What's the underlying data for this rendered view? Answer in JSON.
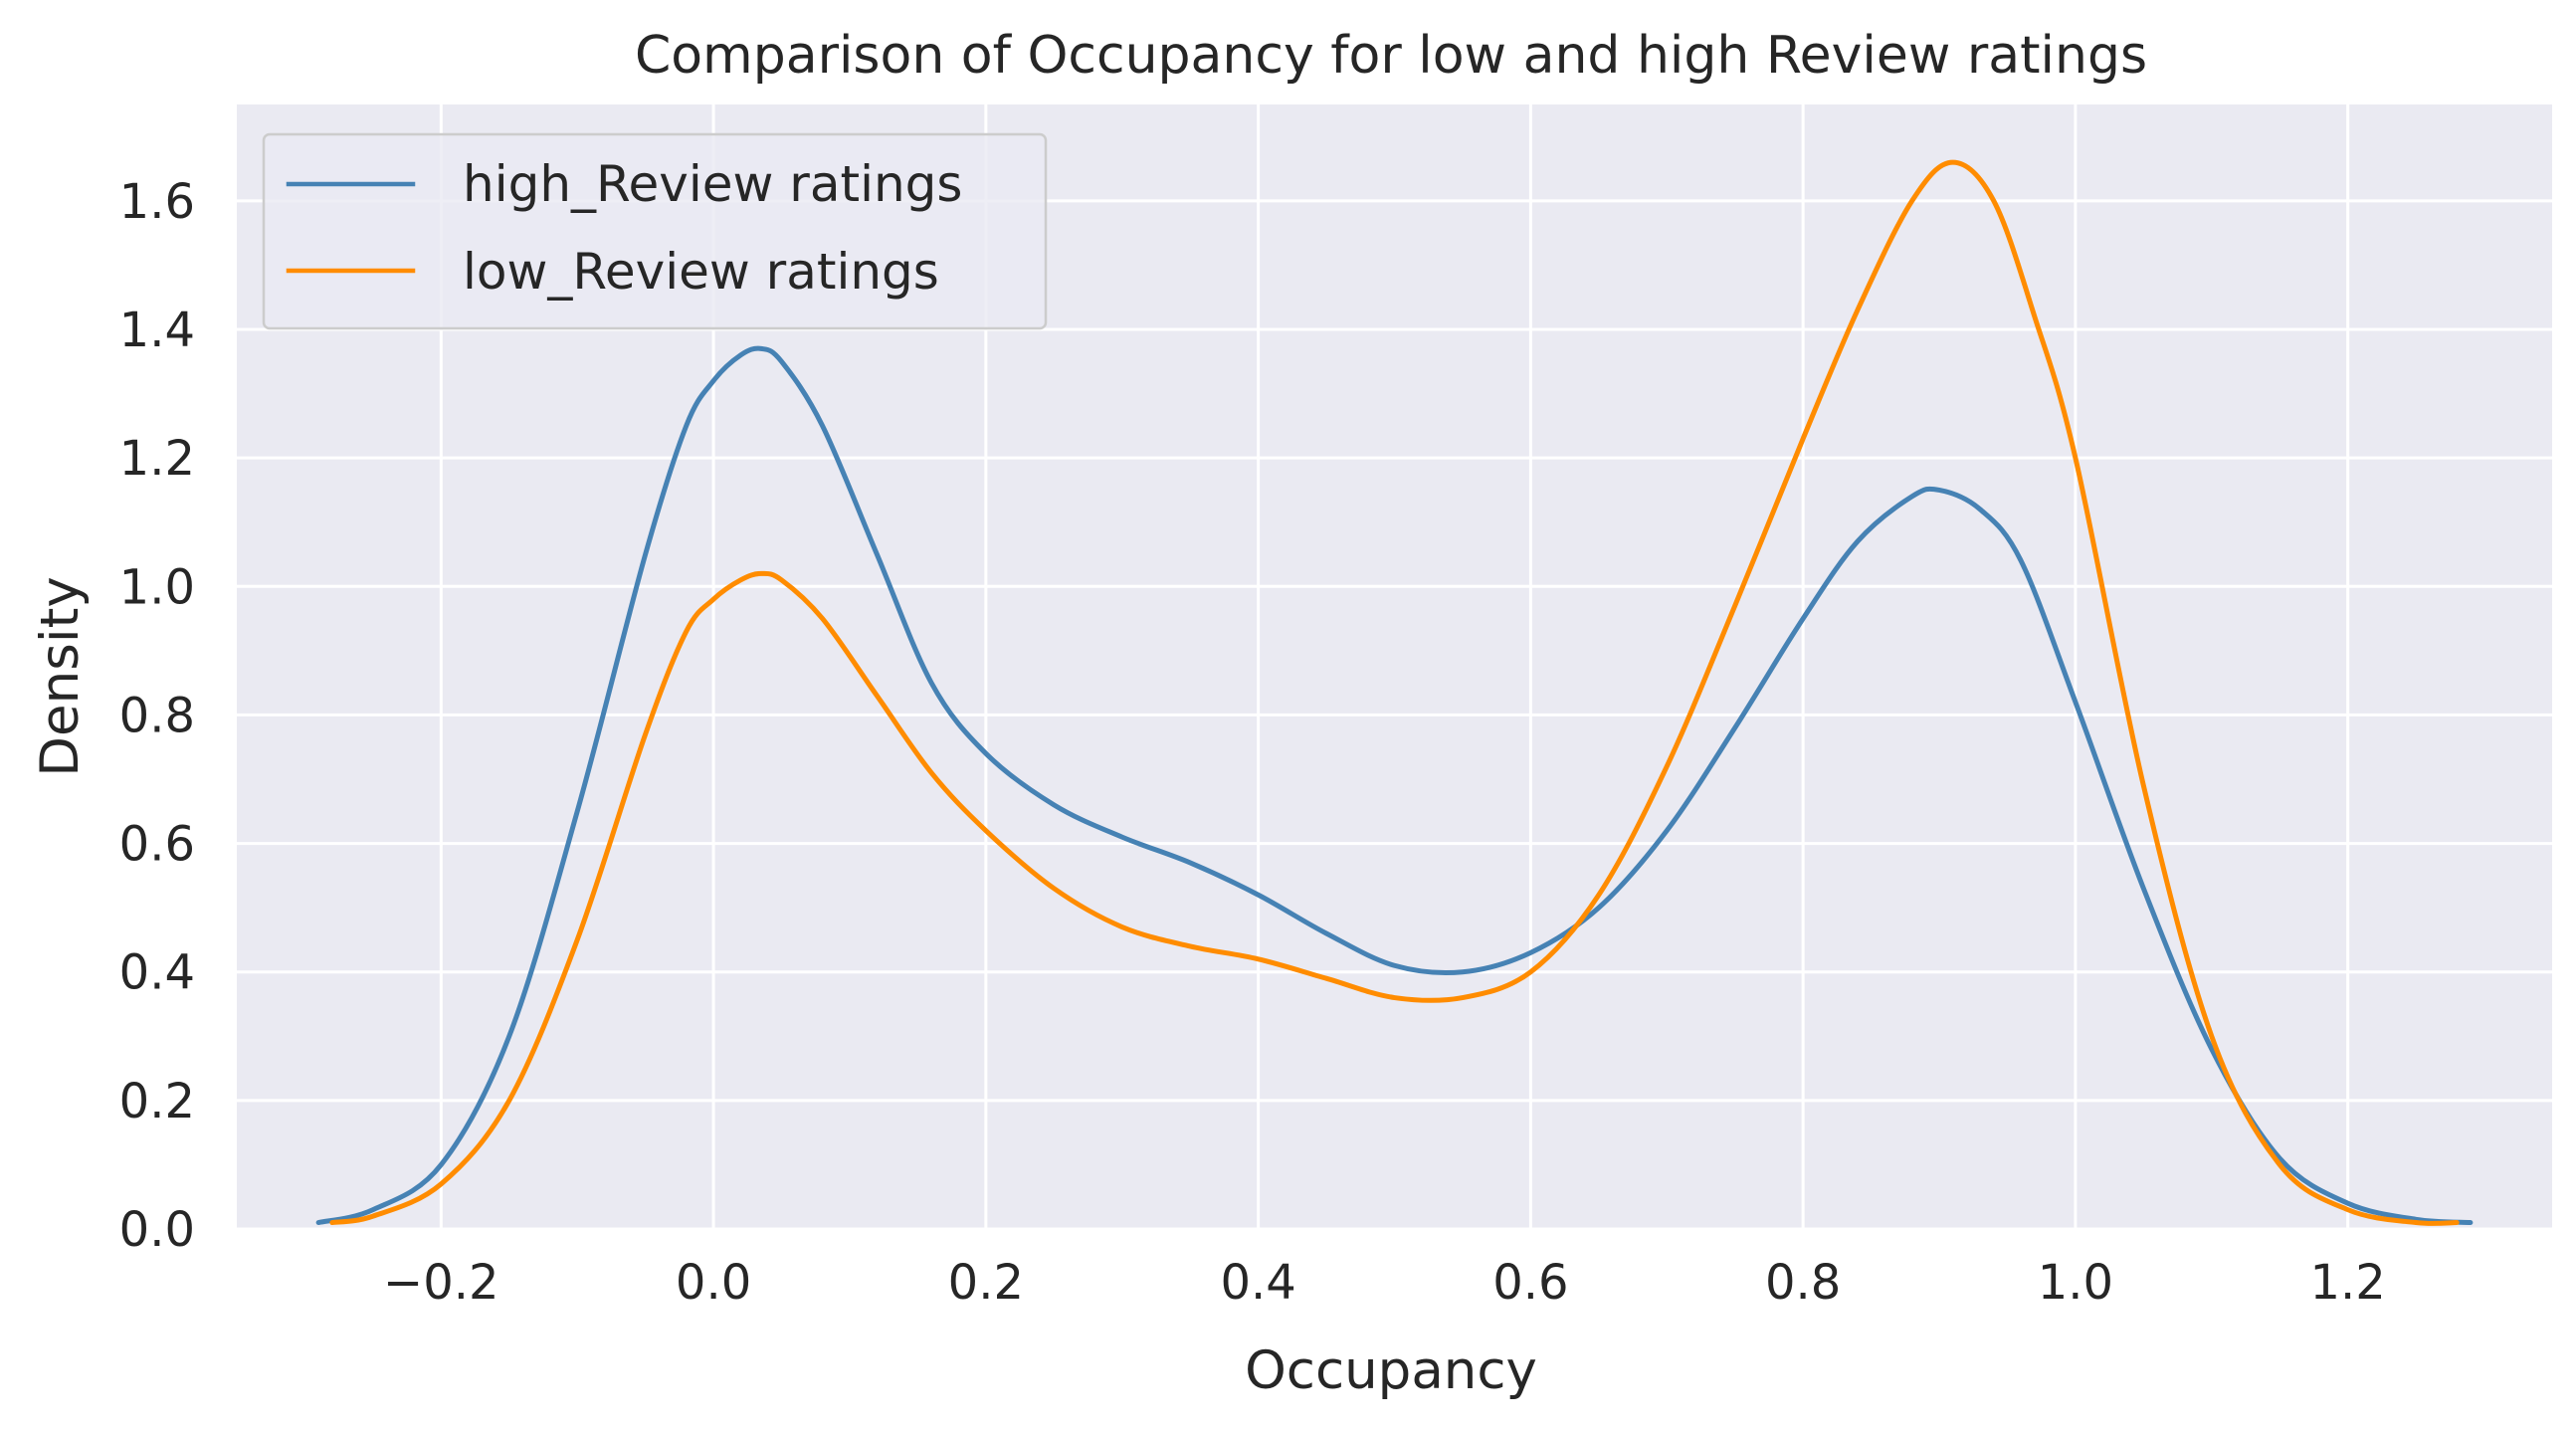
{
  "chart_data": {
    "type": "line",
    "title": "Comparison of Occupancy for low and high Review ratings",
    "xlabel": "Occupancy",
    "ylabel": "Density",
    "xlim": [
      -0.35,
      1.35
    ],
    "ylim": [
      0.0,
      1.75
    ],
    "xticks": [
      -0.2,
      0.0,
      0.2,
      0.4,
      0.6,
      0.8,
      1.0,
      1.2
    ],
    "xtick_labels": [
      "−0.2",
      "0.0",
      "0.2",
      "0.4",
      "0.6",
      "0.8",
      "1.0",
      "1.2"
    ],
    "yticks": [
      0.0,
      0.2,
      0.4,
      0.6,
      0.8,
      1.0,
      1.2,
      1.4,
      1.6
    ],
    "ytick_labels": [
      "0.0",
      "0.2",
      "0.4",
      "0.6",
      "0.8",
      "1.0",
      "1.2",
      "1.4",
      "1.6"
    ],
    "grid": true,
    "legend_position": "top-left",
    "background": "#EAEAF2",
    "series": [
      {
        "name": "high_Review ratings",
        "color": "#4682B4",
        "x": [
          -0.29,
          -0.25,
          -0.2,
          -0.15,
          -0.1,
          -0.05,
          -0.02,
          0.0,
          0.02,
          0.035,
          0.05,
          0.08,
          0.12,
          0.16,
          0.2,
          0.25,
          0.3,
          0.35,
          0.4,
          0.45,
          0.5,
          0.55,
          0.6,
          0.65,
          0.7,
          0.75,
          0.8,
          0.84,
          0.88,
          0.9,
          0.93,
          0.96,
          1.0,
          1.05,
          1.1,
          1.15,
          1.2,
          1.25,
          1.29
        ],
        "y": [
          0.01,
          0.03,
          0.1,
          0.3,
          0.65,
          1.05,
          1.25,
          1.32,
          1.36,
          1.37,
          1.35,
          1.25,
          1.05,
          0.85,
          0.74,
          0.66,
          0.61,
          0.57,
          0.52,
          0.46,
          0.41,
          0.4,
          0.43,
          0.5,
          0.62,
          0.78,
          0.95,
          1.07,
          1.14,
          1.15,
          1.12,
          1.04,
          0.82,
          0.53,
          0.28,
          0.11,
          0.04,
          0.015,
          0.01
        ]
      },
      {
        "name": "low_Review ratings",
        "color": "#FF8C00",
        "x": [
          -0.28,
          -0.25,
          -0.2,
          -0.15,
          -0.1,
          -0.05,
          -0.02,
          0.0,
          0.02,
          0.035,
          0.05,
          0.08,
          0.12,
          0.16,
          0.2,
          0.25,
          0.3,
          0.35,
          0.4,
          0.45,
          0.5,
          0.55,
          0.6,
          0.65,
          0.7,
          0.75,
          0.8,
          0.84,
          0.88,
          0.91,
          0.94,
          0.97,
          1.0,
          1.05,
          1.1,
          1.15,
          1.2,
          1.25,
          1.28
        ],
        "y": [
          0.01,
          0.02,
          0.07,
          0.2,
          0.45,
          0.77,
          0.93,
          0.98,
          1.01,
          1.02,
          1.01,
          0.95,
          0.83,
          0.71,
          0.62,
          0.53,
          0.47,
          0.44,
          0.42,
          0.39,
          0.36,
          0.36,
          0.4,
          0.52,
          0.72,
          0.97,
          1.23,
          1.43,
          1.6,
          1.66,
          1.6,
          1.42,
          1.2,
          0.69,
          0.3,
          0.1,
          0.03,
          0.01,
          0.01
        ]
      }
    ]
  }
}
